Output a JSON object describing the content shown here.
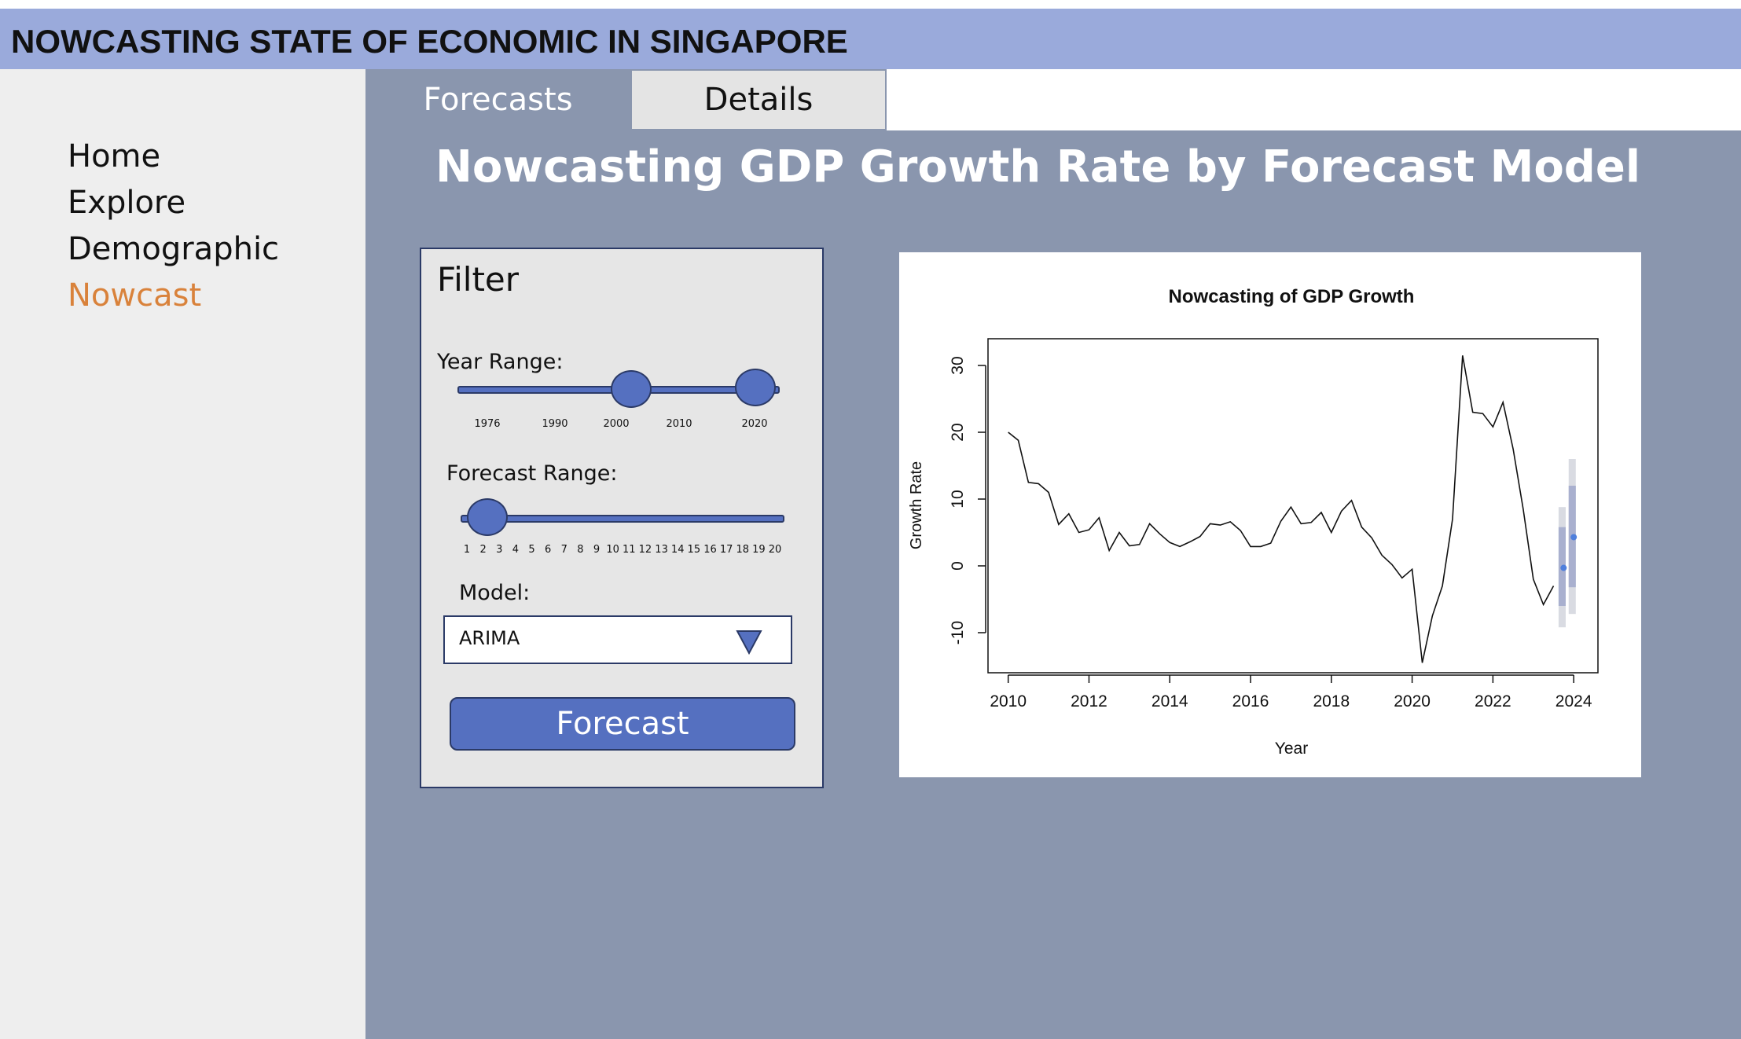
{
  "header": {
    "title": "NOWCASTING STATE OF ECONOMIC IN SINGAPORE"
  },
  "sidebar": {
    "items": [
      {
        "label": "Home"
      },
      {
        "label": "Explore"
      },
      {
        "label": "Demographic"
      },
      {
        "label": "Nowcast",
        "active": true
      }
    ]
  },
  "tabs": [
    {
      "label": "Forecasts",
      "active": true
    },
    {
      "label": "Details"
    }
  ],
  "main": {
    "title": "Nowcasting GDP Growth Rate by Forecast Model"
  },
  "filter": {
    "title": "Filter",
    "year_range": {
      "label": "Year Range:",
      "ticks": [
        "1976",
        "1990",
        "2000",
        "2010",
        "2020"
      ],
      "selected": [
        "2000",
        "2020"
      ]
    },
    "forecast_range": {
      "label": "Forecast Range:",
      "ticks": [
        "1",
        "2",
        "3",
        "4",
        "5",
        "6",
        "7",
        "8",
        "9",
        "10",
        "11",
        "12",
        "13",
        "14",
        "15",
        "16",
        "17",
        "18",
        "19",
        "20"
      ],
      "selected": 2
    },
    "model": {
      "label": "Model:",
      "value": "ARIMA"
    },
    "button_label": "Forecast"
  },
  "colors": {
    "header_bg": "#9aaadb",
    "main_bg": "#8a96ae",
    "accent": "#5570c0",
    "active_nav": "#d9823b"
  },
  "chart_data": {
    "type": "line",
    "title": "Nowcasting of GDP Growth",
    "xlabel": "Year",
    "ylabel": "Growth Rate",
    "xlim": [
      2009.5,
      2024.6
    ],
    "ylim": [
      -16,
      34
    ],
    "x_ticks": [
      "2010",
      "2012",
      "2014",
      "2016",
      "2018",
      "2020",
      "2022",
      "2024"
    ],
    "y_ticks": [
      "-10",
      "0",
      "10",
      "20",
      "30"
    ],
    "grid": false,
    "series": [
      {
        "points": [
          [
            2010.0,
            20.0
          ],
          [
            2010.25,
            18.8
          ],
          [
            2010.5,
            12.5
          ],
          [
            2010.75,
            12.3
          ],
          [
            2011.0,
            11.0
          ],
          [
            2011.25,
            6.2
          ],
          [
            2011.5,
            7.8
          ],
          [
            2011.75,
            5.0
          ],
          [
            2012.0,
            5.4
          ],
          [
            2012.25,
            7.2
          ],
          [
            2012.5,
            2.3
          ],
          [
            2012.75,
            5.0
          ],
          [
            2013.0,
            3.0
          ],
          [
            2013.25,
            3.2
          ],
          [
            2013.5,
            6.3
          ],
          [
            2013.75,
            4.8
          ],
          [
            2014.0,
            3.5
          ],
          [
            2014.25,
            2.9
          ],
          [
            2014.5,
            3.6
          ],
          [
            2014.75,
            4.4
          ],
          [
            2015.0,
            6.3
          ],
          [
            2015.25,
            6.1
          ],
          [
            2015.5,
            6.6
          ],
          [
            2015.75,
            5.3
          ],
          [
            2016.0,
            2.9
          ],
          [
            2016.25,
            2.9
          ],
          [
            2016.5,
            3.4
          ],
          [
            2016.75,
            6.7
          ],
          [
            2017.0,
            8.8
          ],
          [
            2017.25,
            6.3
          ],
          [
            2017.5,
            6.5
          ],
          [
            2017.75,
            8.0
          ],
          [
            2018.0,
            5.0
          ],
          [
            2018.25,
            8.2
          ],
          [
            2018.5,
            9.8
          ],
          [
            2018.75,
            5.8
          ],
          [
            2019.0,
            4.2
          ],
          [
            2019.25,
            1.6
          ],
          [
            2019.5,
            0.2
          ],
          [
            2019.75,
            -1.8
          ],
          [
            2020.0,
            -0.5
          ],
          [
            2020.25,
            -14.5
          ],
          [
            2020.5,
            -7.5
          ],
          [
            2020.75,
            -3.0
          ],
          [
            2021.0,
            7.0
          ],
          [
            2021.25,
            31.5
          ],
          [
            2021.5,
            23.0
          ],
          [
            2021.75,
            22.8
          ],
          [
            2022.0,
            20.8
          ],
          [
            2022.25,
            24.5
          ],
          [
            2022.5,
            17.5
          ],
          [
            2022.75,
            8.5
          ],
          [
            2023.0,
            -2.0
          ],
          [
            2023.25,
            -5.8
          ],
          [
            2023.5,
            -3.0
          ]
        ]
      }
    ],
    "forecast": [
      {
        "x": 2023.75,
        "point": -0.3,
        "lo80": -6.0,
        "hi80": 5.8,
        "lo95": -9.2,
        "hi95": 8.8
      },
      {
        "x": 2024.0,
        "point": 4.3,
        "lo80": -3.2,
        "hi80": 12.0,
        "lo95": -7.2,
        "hi95": 16.0
      }
    ]
  }
}
